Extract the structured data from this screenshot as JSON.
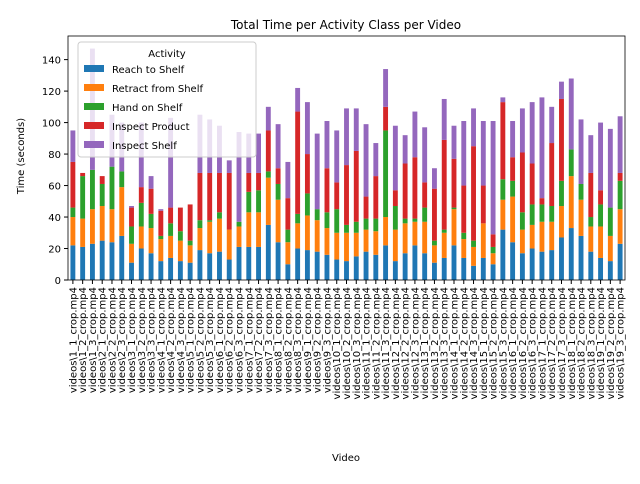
{
  "chart_data": {
    "type": "stacked_bar",
    "title": "Total Time per Activity Class per Video",
    "x_label": "Video",
    "y_label": "Time (seconds)",
    "legend_title": "Activity",
    "legend_position": "upper left",
    "categories": [
      "videos\\1_1_crop.mp4",
      "videos\\1_2_crop.mp4",
      "videos\\1_3_crop.mp4",
      "videos\\2_1_crop.mp4",
      "videos\\2_2_crop.mp4",
      "videos\\2_3_crop.mp4",
      "videos\\3_1_crop.mp4",
      "videos\\3_2_crop.mp4",
      "videos\\3_3_crop.mp4",
      "videos\\4_1_crop.mp4",
      "videos\\4_2_crop.mp4",
      "videos\\4_3_crop.mp4",
      "videos\\5_1_crop.mp4",
      "videos\\5_2_crop.mp4",
      "videos\\5_3_crop.mp4",
      "videos\\6_1_crop.mp4",
      "videos\\6_2_crop.mp4",
      "videos\\6_3_crop.mp4",
      "videos\\7_1_crop.mp4",
      "videos\\7_2_crop.mp4",
      "videos\\7_3_crop.mp4",
      "videos\\8_1_crop.mp4",
      "videos\\8_2_crop.mp4",
      "videos\\8_3_crop.mp4",
      "videos\\9_1_crop.mp4",
      "videos\\9_2_crop.mp4",
      "videos\\9_3_crop.mp4",
      "videos\\10_1_crop.mp4",
      "videos\\10_2_crop.mp4",
      "videos\\10_3_crop.mp4",
      "videos\\11_1_crop.mp4",
      "videos\\11_2_crop.mp4",
      "videos\\11_3_crop.mp4",
      "videos\\12_1_crop.mp4",
      "videos\\12_2_crop.mp4",
      "videos\\12_3_crop.mp4",
      "videos\\13_1_crop.mp4",
      "videos\\13_2_crop.mp4",
      "videos\\13_3_crop.mp4",
      "videos\\14_1_crop.mp4",
      "videos\\14_2_crop.mp4",
      "videos\\14_3_crop.mp4",
      "videos\\15_1_crop.mp4",
      "videos\\15_2_crop.mp4",
      "videos\\15_3_crop.mp4",
      "videos\\16_1_crop.mp4",
      "videos\\16_2_crop.mp4",
      "videos\\16_3_crop.mp4",
      "videos\\17_1_crop.mp4",
      "videos\\17_2_crop.mp4",
      "videos\\17_3_crop.mp4",
      "videos\\18_1_crop.mp4",
      "videos\\18_2_crop.mp4",
      "videos\\18_3_crop.mp4",
      "videos\\19_1_crop.mp4",
      "videos\\19_2_crop.mp4",
      "videos\\19_3_crop.mp4"
    ],
    "series": [
      {
        "name": "Reach to Shelf",
        "color": "#1f77b4",
        "values": [
          22,
          21,
          23,
          25,
          24,
          28,
          11,
          20,
          17,
          12,
          14,
          12,
          11,
          19,
          17,
          18,
          13,
          21,
          21,
          21,
          35,
          24,
          10,
          20,
          19,
          18,
          16,
          13,
          12,
          15,
          18,
          16,
          22,
          12,
          17,
          22,
          17,
          11,
          14,
          22,
          14,
          9,
          14,
          10,
          32,
          24,
          17,
          20,
          18,
          19,
          27,
          33,
          28,
          18,
          14,
          12,
          23
        ]
      },
      {
        "name": "Retract from Shelf",
        "color": "#ff7f0e",
        "values": [
          18,
          18,
          22,
          22,
          21,
          31,
          12,
          14,
          16,
          14,
          14,
          13,
          11,
          14,
          20,
          21,
          19,
          13,
          22,
          22,
          30,
          27,
          14,
          16,
          22,
          20,
          17,
          17,
          18,
          15,
          14,
          15,
          18,
          20,
          19,
          15,
          20,
          11,
          16,
          23,
          12,
          12,
          22,
          7,
          19,
          29,
          15,
          15,
          19,
          18,
          20,
          33,
          23,
          16,
          20,
          16,
          22
        ]
      },
      {
        "name": "Hand on Shelf",
        "color": "#2ca02c",
        "values": [
          6,
          27,
          25,
          14,
          27,
          10,
          11,
          15,
          9,
          2,
          8,
          6,
          3,
          5,
          1,
          4,
          0,
          3,
          13,
          14,
          4,
          10,
          8,
          6,
          14,
          7,
          10,
          15,
          5,
          7,
          7,
          8,
          55,
          15,
          3,
          2,
          9,
          3,
          2,
          1,
          4,
          4,
          0,
          4,
          13,
          10,
          11,
          13,
          11,
          10,
          16,
          17,
          10,
          6,
          14,
          18,
          18
        ]
      },
      {
        "name": "Inspect Product",
        "color": "#d62728",
        "values": [
          29,
          2,
          0,
          5,
          0,
          0,
          12,
          10,
          16,
          16,
          10,
          15,
          23,
          30,
          30,
          25,
          36,
          0,
          12,
          11,
          26,
          10,
          20,
          65,
          25,
          0,
          28,
          17,
          38,
          45,
          14,
          27,
          15,
          10,
          35,
          39,
          16,
          33,
          57,
          31,
          30,
          60,
          24,
          8,
          49,
          15,
          38,
          26,
          4,
          40,
          52,
          0,
          0,
          28,
          9,
          0,
          5
        ]
      },
      {
        "name": "Inspect Shelf",
        "color": "#9467bd",
        "values": [
          20,
          0,
          77,
          0,
          33,
          31,
          1,
          41,
          8,
          1,
          57,
          0,
          0,
          37,
          34,
          30,
          8,
          57,
          25,
          25,
          15,
          28,
          23,
          15,
          33,
          48,
          30,
          33,
          36,
          27,
          46,
          21,
          24,
          41,
          18,
          29,
          35,
          13,
          26,
          21,
          41,
          24,
          41,
          72,
          3,
          23,
          28,
          39,
          64,
          23,
          11,
          45,
          41,
          24,
          43,
          50,
          36
        ]
      }
    ],
    "ylim": [
      0,
      155
    ],
    "yticks": [
      0,
      20,
      40,
      60,
      80,
      100,
      120,
      140
    ]
  }
}
